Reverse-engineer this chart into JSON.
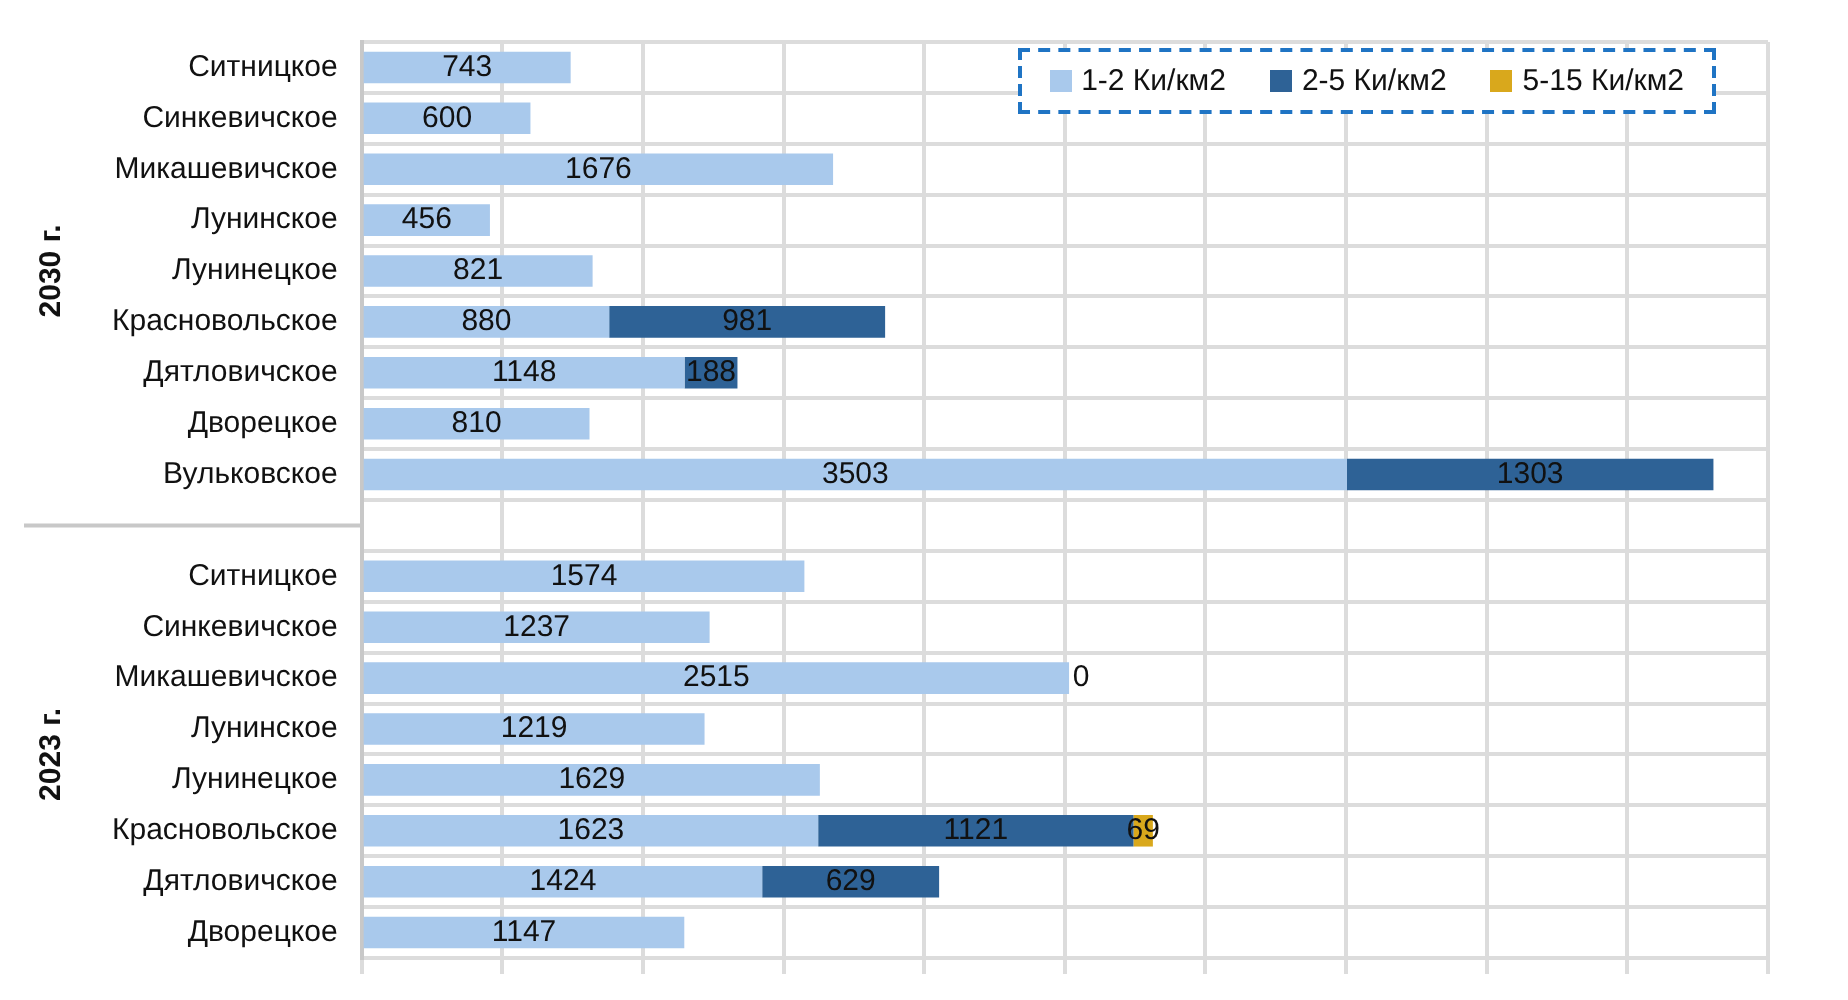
{
  "chart_data": {
    "type": "bar",
    "orientation": "horizontal",
    "stacked": true,
    "categories": [
      "Ситницкое",
      "Синкевичское",
      "Микашевичское",
      "Лунинское",
      "Лунинецкое",
      "Красновольское",
      "Дятловичское",
      "Дворецкое",
      "Вульковское",
      null,
      "Ситницкое",
      "Синкевичское",
      "Микашевичское",
      "Лунинское",
      "Лунинецкое",
      "Красновольское",
      "Дятловичское",
      "Дворецкое"
    ],
    "series": [
      {
        "name": "1-2 Ки/км2",
        "color": "#a9c9ec",
        "values": [
          743,
          600,
          1676,
          456,
          821,
          880,
          1148,
          810,
          3503,
          null,
          1574,
          1237,
          2515,
          1219,
          1629,
          1623,
          1424,
          1147
        ]
      },
      {
        "name": "2-5 Ки/км2",
        "color": "#2e6296",
        "values": [
          null,
          null,
          null,
          null,
          null,
          981,
          188,
          null,
          1303,
          null,
          null,
          null,
          0,
          null,
          null,
          1121,
          629,
          null
        ]
      },
      {
        "name": "5-15 Ки/км2",
        "color": "#d9a81c",
        "values": [
          null,
          null,
          null,
          null,
          null,
          null,
          null,
          null,
          null,
          null,
          null,
          null,
          null,
          null,
          null,
          69,
          null,
          null
        ]
      }
    ],
    "tick_labels": "y",
    "grid": true,
    "legend": "top right",
    "data_labels": true,
    "annotations": [
      "2030 г.",
      "2023 г."
    ]
  }
}
